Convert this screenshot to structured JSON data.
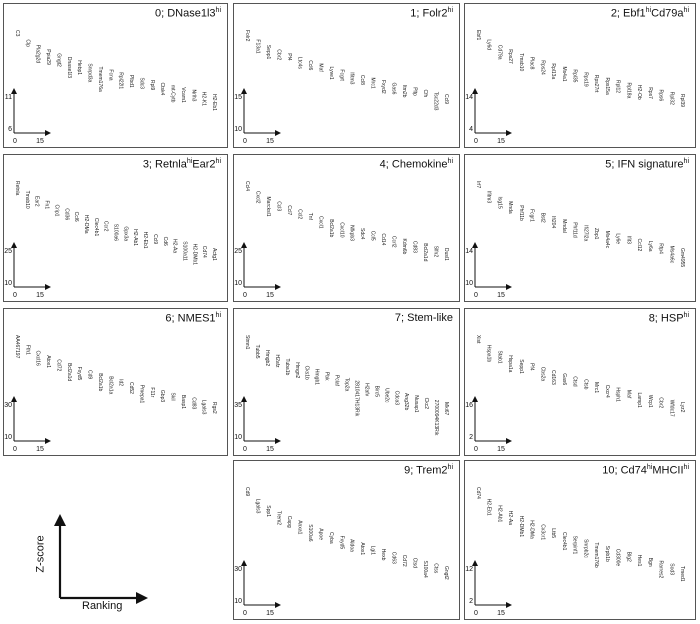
{
  "chart_data": [
    {
      "type": "scatter",
      "title": "0; DNase1l3",
      "sup": "hi",
      "y_ticks": [
        "11",
        "6"
      ],
      "x_ticks": [
        "0",
        "15"
      ],
      "genes": [
        "C3",
        "Clp",
        "Pla2g2d",
        "Ppia29",
        "Gngt2",
        "Dnase1l3",
        "Hebp1",
        "Snrpd3a",
        "Tmem176a",
        "Fcna",
        "Rpl22l1",
        "Plbd1",
        "Sdc3",
        "Rpl9",
        "Ctsk4",
        "mt-Cytb",
        "Vcam1",
        "Nrlh3",
        "H2-K1",
        "H2-Eb1"
      ]
    },
    {
      "type": "scatter",
      "title": "1; Folr2",
      "sup": "hi",
      "y_ticks": [
        "15",
        "10"
      ],
      "x_ticks": [
        "0",
        "15"
      ],
      "genes": [
        "Folr2",
        "F13a1",
        "Sepp1",
        "Cbr2",
        "Pf4",
        "Ltc4s",
        "Ccl6",
        "Maf",
        "Lyve1",
        "Fcgrt",
        "Ifitm3",
        "Ccl8",
        "Mrc1",
        "Fxyd2",
        "Gas6",
        "Itm2b",
        "Pltp",
        "Cfh",
        "Tsc22d3",
        "Ccl9"
      ]
    },
    {
      "type": "scatter",
      "title": "2; Ebf1",
      "sup": "hi",
      "title_mid": "Cd79a",
      "sup2": "hi",
      "y_ticks": [
        "14",
        "4"
      ],
      "x_ticks": [
        "0",
        "15"
      ],
      "genes": [
        "Ebf1",
        "Ly6d",
        "Cd79a",
        "Rps27",
        "Tmsb10",
        "Plac8",
        "Rps24",
        "Rpl13a",
        "Ms4a1",
        "Rpl35",
        "Rps19",
        "Rps27rt",
        "Rps15a",
        "Rpl12",
        "Rpl18a",
        "H2-Ob",
        "Rps7",
        "Rps6",
        "Rpl32",
        "Rpl39"
      ]
    },
    {
      "type": "scatter",
      "title": "3; Retnla",
      "sup": "hi",
      "title_mid": "Ear2",
      "sup2": "hi",
      "y_ticks": [
        "25",
        "10"
      ],
      "x_ticks": [
        "0",
        "15"
      ],
      "genes": [
        "Retnla",
        "Tmsb10",
        "Ear2",
        "Fn1",
        "Crip1",
        "Cd36",
        "Ccl6",
        "H2-DMa",
        "Clec4b1",
        "Ccr2",
        "S100a6",
        "Gpx3a",
        "H2-Ab1",
        "H2-Eb1",
        "Ccl9",
        "Cd6",
        "H2-Aa",
        "S100a11",
        "H2-DMb1",
        "Cd74",
        "Actg1"
      ]
    },
    {
      "type": "scatter",
      "title": "4; Chemokine",
      "sup": "hi",
      "y_ticks": [
        "25",
        "10"
      ],
      "x_ticks": [
        "0",
        "15"
      ],
      "genes": [
        "Ccl4",
        "Cxcl2",
        "Marcksl1",
        "Ccl3",
        "Ccl7",
        "Ccl2",
        "Tnf",
        "Cxcl1",
        "Bcl2a1b",
        "Cxcl10",
        "Nfkpb3",
        "Sdc4",
        "Ccl5",
        "Cd14",
        "Ccrl2",
        "Kdm6b",
        "Cd83",
        "Bcl2a1d",
        "Slfn2",
        "Dusl1"
      ]
    },
    {
      "type": "scatter",
      "title": "5; IFN signature",
      "sup": "hi",
      "y_ticks": [
        "14",
        "10"
      ],
      "x_ticks": [
        "0",
        "15"
      ],
      "genes": [
        "Irf7",
        "Ifitm3",
        "Isg15",
        "Mnda",
        "Phf11b",
        "Fcgr1",
        "Bst2",
        "Ifi204",
        "Mndal",
        "Phf11d",
        "Ifi27l2a",
        "Zbp1",
        "Ms4a4c",
        "Ly6e",
        "Ifit3",
        "Ccl12",
        "Ly6a",
        "Rtp4",
        "Ms4a6c",
        "Gm4955"
      ]
    },
    {
      "type": "scatter",
      "title": "6; NMES1",
      "sup": "hi",
      "y_ticks": [
        "30",
        "10"
      ],
      "x_ticks": [
        "0",
        "15"
      ],
      "genes": [
        "AA467197",
        "Fth1",
        "Cxcl16",
        "Atox1",
        "Cd72",
        "Bcl2a1d",
        "Fxyd5",
        "Cd9",
        "Bcl2a1b",
        "Bcl2a1a",
        "Id2",
        "Cd52",
        "Pmepa1",
        "F11r",
        "Gbp3",
        "Skil",
        "Basp1",
        "Cd83",
        "Lgals3",
        "Rgs2"
      ]
    },
    {
      "type": "scatter",
      "title": "7; Stem-like",
      "sup": "",
      "y_ticks": [
        "35",
        "10"
      ],
      "x_ticks": [
        "0",
        "15"
      ],
      "genes": [
        "Stmn1",
        "Tubb5",
        "Hmgb2",
        "H2afz",
        "Tuba1b",
        "Hmgn2",
        "Cks1b",
        "Hmgb1",
        "Pbk",
        "Pclaf",
        "Top2a",
        "2810417H13Rik",
        "H2afv",
        "Birc5",
        "Ube2c",
        "Cdca3",
        "Ang32b",
        "Nusap1",
        "Ckc2",
        "2700094K13Rik",
        "Mki67"
      ]
    },
    {
      "type": "scatter",
      "title": "8; HSP",
      "sup": "hi",
      "y_ticks": [
        "16",
        "2"
      ],
      "x_ticks": [
        "0",
        "15"
      ],
      "genes": [
        "Xist",
        "Hspa1b",
        "Stab1",
        "Hspa1a",
        "Sepp1",
        "Pf4",
        "Cbs2a",
        "Cd163",
        "Gas6",
        "Ctsd",
        "Ctsb",
        "Mrc1",
        "Cxcr4",
        "Hsph1",
        "Maf",
        "Lamp1",
        "Wcp1",
        "Cbr2",
        "Wfdc17",
        "Lyz2"
      ]
    },
    {
      "type": "scatter",
      "title": "9; Trem2",
      "sup": "hi",
      "y_ticks": [
        "30",
        "10"
      ],
      "x_ticks": [
        "0",
        "15"
      ],
      "genes": [
        "Cd9",
        "Lgals3",
        "Spp1",
        "Trem2",
        "Capg",
        "Anxa1",
        "S100a6",
        "Apoe",
        "Cyba",
        "Fxyd5",
        "Aldoa",
        "Atox1",
        "Lgi1",
        "Hexb",
        "Cd63",
        "Cd72",
        "Ctsd",
        "S100a4",
        "Ctss",
        "Gngt2"
      ]
    },
    {
      "type": "scatter",
      "title": "10; Cd74",
      "sup": "hi",
      "title_mid": "MHCII",
      "sup2": "hi",
      "y_ticks": [
        "12",
        "2"
      ],
      "x_ticks": [
        "0",
        "15"
      ],
      "genes": [
        "Cd74",
        "H2-Eb1",
        "H2-Ab1",
        "H2-Aa",
        "H2-DMb1",
        "H2-DMa",
        "Cx3cr1",
        "Ltb5",
        "Clec4b1",
        "Serpinf1",
        "Snrpb2c",
        "Tmem176b",
        "Srpb1b",
        "Cd300e",
        "Blg2",
        "Hes1",
        "Bgn",
        "Rarres2",
        "Sod3",
        "Tmed1"
      ]
    }
  ],
  "legend": {
    "y_label": "Z-score",
    "x_label": "Ranking"
  }
}
